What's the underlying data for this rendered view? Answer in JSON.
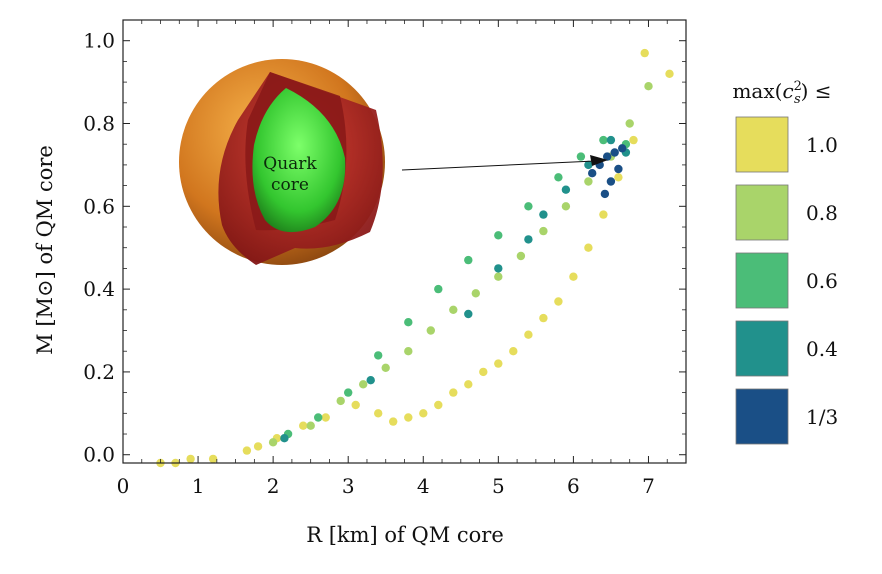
{
  "chart_data": {
    "type": "scatter",
    "title": "",
    "xlabel": "R [km] of QM core",
    "ylabel": "M [M⊙] of QM core",
    "xlim": [
      0,
      7.5
    ],
    "ylim": [
      -0.02,
      1.05
    ],
    "xticks": [
      0,
      1,
      2,
      3,
      4,
      5,
      6,
      7
    ],
    "yticks": [
      0.0,
      0.2,
      0.4,
      0.6,
      0.8,
      1.0
    ],
    "xtick_labels": [
      "0",
      "1",
      "2",
      "3",
      "4",
      "5",
      "6",
      "7"
    ],
    "ytick_labels": [
      "0.0",
      "0.2",
      "0.4",
      "0.6",
      "0.8",
      "1.0"
    ],
    "grid": false,
    "legend_title": "max(c_s^2) ≤",
    "legend_placement": "right",
    "series": [
      {
        "name": "1.0",
        "color": "#e6dd5c",
        "values": [
          [
            0.5,
            -0.02
          ],
          [
            0.7,
            -0.02
          ],
          [
            0.9,
            -0.01
          ],
          [
            1.2,
            -0.01
          ],
          [
            1.65,
            0.01
          ],
          [
            1.8,
            0.02
          ],
          [
            2.05,
            0.04
          ],
          [
            2.4,
            0.07
          ],
          [
            2.7,
            0.09
          ],
          [
            3.1,
            0.12
          ],
          [
            3.4,
            0.1
          ],
          [
            3.6,
            0.08
          ],
          [
            3.8,
            0.09
          ],
          [
            4.0,
            0.1
          ],
          [
            4.2,
            0.12
          ],
          [
            4.4,
            0.15
          ],
          [
            4.6,
            0.17
          ],
          [
            4.8,
            0.2
          ],
          [
            5.0,
            0.22
          ],
          [
            5.2,
            0.25
          ],
          [
            5.4,
            0.29
          ],
          [
            5.6,
            0.33
          ],
          [
            5.8,
            0.37
          ],
          [
            6.0,
            0.43
          ],
          [
            6.2,
            0.5
          ],
          [
            6.4,
            0.58
          ],
          [
            6.6,
            0.67
          ],
          [
            6.8,
            0.76
          ],
          [
            6.95,
            0.97
          ],
          [
            7.28,
            0.92
          ]
        ]
      },
      {
        "name": "0.8",
        "color": "#a9d46a",
        "values": [
          [
            2.0,
            0.03
          ],
          [
            2.5,
            0.07
          ],
          [
            2.9,
            0.13
          ],
          [
            3.2,
            0.17
          ],
          [
            3.5,
            0.21
          ],
          [
            3.8,
            0.25
          ],
          [
            4.1,
            0.3
          ],
          [
            4.4,
            0.35
          ],
          [
            4.7,
            0.39
          ],
          [
            5.0,
            0.43
          ],
          [
            5.3,
            0.48
          ],
          [
            5.6,
            0.54
          ],
          [
            5.9,
            0.6
          ],
          [
            6.2,
            0.66
          ],
          [
            6.5,
            0.72
          ],
          [
            6.75,
            0.8
          ],
          [
            7.0,
            0.89
          ]
        ]
      },
      {
        "name": "0.6",
        "color": "#4bbd78",
        "values": [
          [
            2.2,
            0.05
          ],
          [
            2.6,
            0.09
          ],
          [
            3.0,
            0.15
          ],
          [
            3.4,
            0.24
          ],
          [
            3.8,
            0.32
          ],
          [
            4.2,
            0.4
          ],
          [
            4.6,
            0.47
          ],
          [
            5.0,
            0.53
          ],
          [
            5.4,
            0.6
          ],
          [
            5.8,
            0.67
          ],
          [
            6.1,
            0.72
          ],
          [
            6.4,
            0.76
          ],
          [
            6.7,
            0.75
          ]
        ]
      },
      {
        "name": "0.4",
        "color": "#21918c",
        "values": [
          [
            2.15,
            0.04
          ],
          [
            3.3,
            0.18
          ],
          [
            4.6,
            0.34
          ],
          [
            5.0,
            0.45
          ],
          [
            5.4,
            0.52
          ],
          [
            5.6,
            0.58
          ],
          [
            5.9,
            0.64
          ],
          [
            6.2,
            0.7
          ],
          [
            6.5,
            0.76
          ],
          [
            6.7,
            0.73
          ]
        ]
      },
      {
        "name": "1/3",
        "color": "#1a4f86",
        "values": [
          [
            6.25,
            0.68
          ],
          [
            6.35,
            0.7
          ],
          [
            6.45,
            0.72
          ],
          [
            6.55,
            0.73
          ],
          [
            6.65,
            0.74
          ],
          [
            6.5,
            0.66
          ],
          [
            6.6,
            0.69
          ],
          [
            6.42,
            0.63
          ]
        ]
      }
    ],
    "annotations": [
      {
        "text": "Quark core",
        "lines": [
          "Quark",
          "core"
        ],
        "arrow_to": [
          6.5,
          0.72
        ]
      }
    ]
  }
}
